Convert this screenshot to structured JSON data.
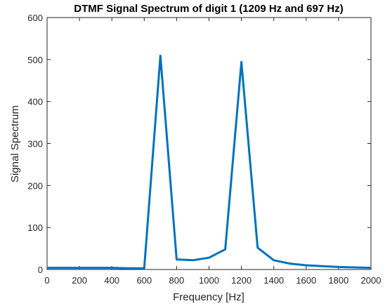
{
  "chart_data": {
    "type": "line",
    "title": "DTMF Signal Spectrum of digit 1 (1209 Hz and 697 Hz)",
    "xlabel": "Frequency [Hz]",
    "ylabel": "Signal Spectrum",
    "xlim": [
      0,
      2000
    ],
    "ylim": [
      0,
      600
    ],
    "xticks": [
      0,
      200,
      400,
      600,
      800,
      1000,
      1200,
      1400,
      1600,
      1800,
      2000
    ],
    "yticks": [
      0,
      100,
      200,
      300,
      400,
      500,
      600
    ],
    "grid": false,
    "line_color": "#0072BD",
    "series": [
      {
        "x": [
          0,
          100,
          200,
          300,
          400,
          500,
          600,
          700,
          800,
          900,
          1000,
          1100,
          1200,
          1300,
          1400,
          1500,
          1600,
          1700,
          1800,
          1900,
          2000
        ],
        "y": [
          4,
          4,
          4,
          4,
          4,
          3,
          3,
          509,
          24,
          22,
          28,
          48,
          494,
          52,
          22,
          14,
          10,
          8,
          6,
          5,
          4
        ]
      }
    ]
  }
}
